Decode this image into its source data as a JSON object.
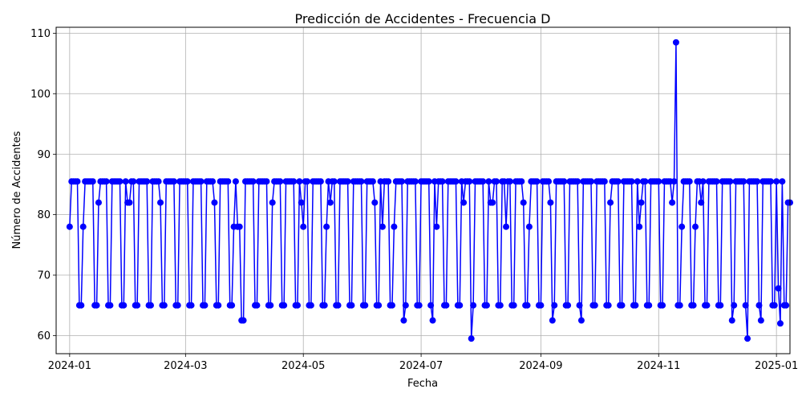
{
  "chart_data": {
    "type": "line",
    "title": "Predicción de Accidentes - Frecuencia D",
    "xlabel": "Fecha",
    "ylabel": "Número de Accidentes",
    "x_axis_type": "date",
    "xlim": [
      "2023-12-25",
      "2025-01-08"
    ],
    "ylim": [
      57,
      111
    ],
    "xticks": [
      "2024-01",
      "2024-03",
      "2024-05",
      "2024-07",
      "2024-09",
      "2024-11",
      "2025-01"
    ],
    "yticks": [
      60,
      70,
      80,
      90,
      100,
      110
    ],
    "grid": true,
    "legend": "none",
    "line_color": "#0000ff",
    "marker": "circle",
    "series": [
      {
        "start_date": "2024-01-01",
        "frequency": "D",
        "values": [
          78,
          85.5,
          85.5,
          85.5,
          85.5,
          65,
          65,
          78,
          85.5,
          85.5,
          85.5,
          85.5,
          85.5,
          65,
          65,
          82,
          85.5,
          85.5,
          85.5,
          85.5,
          65,
          65,
          85.5,
          85.5,
          85.5,
          85.5,
          85.5,
          65,
          65,
          85.5,
          82,
          82,
          85.5,
          85.5,
          65,
          65,
          85.5,
          85.5,
          85.5,
          85.5,
          85.5,
          65,
          65,
          85.5,
          85.5,
          85.5,
          85.5,
          82,
          65,
          65,
          85.5,
          85.5,
          85.5,
          85.5,
          85.5,
          65,
          65,
          85.5,
          85.5,
          85.5,
          85.5,
          85.5,
          65,
          65,
          85.5,
          85.5,
          85.5,
          85.5,
          85.5,
          65,
          65,
          85.5,
          85.5,
          85.5,
          85.5,
          82,
          65,
          65,
          85.5,
          85.5,
          85.5,
          85.5,
          85.5,
          65,
          65,
          78,
          85.5,
          78,
          78,
          62.5,
          62.5,
          85.5,
          85.5,
          85.5,
          85.5,
          85.5,
          65,
          65,
          85.5,
          85.5,
          85.5,
          85.5,
          85.5,
          65,
          65,
          82,
          85.5,
          85.5,
          85.5,
          85.5,
          65,
          65,
          85.5,
          85.5,
          85.5,
          85.5,
          85.5,
          65,
          65,
          85.5,
          82,
          78,
          85.5,
          85.5,
          65,
          65,
          85.5,
          85.5,
          85.5,
          85.5,
          85.5,
          65,
          65,
          78,
          85.5,
          82,
          85.5,
          85.5,
          65,
          65,
          85.5,
          85.5,
          85.5,
          85.5,
          85.5,
          65,
          65,
          85.5,
          85.5,
          85.5,
          85.5,
          85.5,
          65,
          65,
          85.5,
          85.5,
          85.5,
          85.5,
          82,
          65,
          65,
          85.5,
          78,
          85.5,
          85.5,
          85.5,
          65,
          65,
          78,
          85.5,
          85.5,
          85.5,
          85.5,
          62.5,
          65,
          85.5,
          85.5,
          85.5,
          85.5,
          85.5,
          65,
          65,
          85.5,
          85.5,
          85.5,
          85.5,
          85.5,
          65,
          62.5,
          85.5,
          78,
          85.5,
          85.5,
          85.5,
          65,
          65,
          85.5,
          85.5,
          85.5,
          85.5,
          85.5,
          65,
          65,
          85.5,
          82,
          85.5,
          85.5,
          85.5,
          59.5,
          65,
          85.5,
          85.5,
          85.5,
          85.5,
          85.5,
          65,
          65,
          85.5,
          82,
          82,
          85.5,
          85.5,
          65,
          65,
          85.5,
          85.5,
          78,
          85.5,
          85.5,
          65,
          65,
          85.5,
          85.5,
          85.5,
          85.5,
          82,
          65,
          65,
          78,
          85.5,
          85.5,
          85.5,
          85.5,
          65,
          65,
          85.5,
          85.5,
          85.5,
          85.5,
          82,
          62.5,
          65,
          85.5,
          85.5,
          85.5,
          85.5,
          85.5,
          65,
          65,
          85.5,
          85.5,
          85.5,
          85.5,
          85.5,
          65,
          62.5,
          85.5,
          85.5,
          85.5,
          85.5,
          85.5,
          65,
          65,
          85.5,
          85.5,
          85.5,
          85.5,
          85.5,
          65,
          65,
          82,
          85.5,
          85.5,
          85.5,
          85.5,
          65,
          65,
          85.5,
          85.5,
          85.5,
          85.5,
          85.5,
          65,
          65,
          85.5,
          78,
          82,
          85.5,
          85.5,
          65,
          65,
          85.5,
          85.5,
          85.5,
          85.5,
          85.5,
          65,
          65,
          85.5,
          85.5,
          85.5,
          85.5,
          82,
          85.5,
          108.5,
          65,
          65,
          78,
          85.5,
          85.5,
          85.5,
          85.5,
          65,
          65,
          78,
          85.5,
          85.5,
          82,
          85.5,
          65,
          65,
          85.5,
          85.5,
          85.5,
          85.5,
          85.5,
          65,
          65,
          85.5,
          85.5,
          85.5,
          85.5,
          85.5,
          62.5,
          65,
          85.5,
          85.5,
          85.5,
          85.5,
          85.5,
          65,
          59.5,
          85.5,
          85.5,
          85.5,
          85.5,
          85.5,
          65,
          62.5,
          85.5,
          85.5,
          85.5,
          85.5,
          85.5,
          65,
          65,
          85.5,
          67.8,
          62,
          85.5,
          65,
          65,
          82,
          82
        ]
      }
    ]
  }
}
